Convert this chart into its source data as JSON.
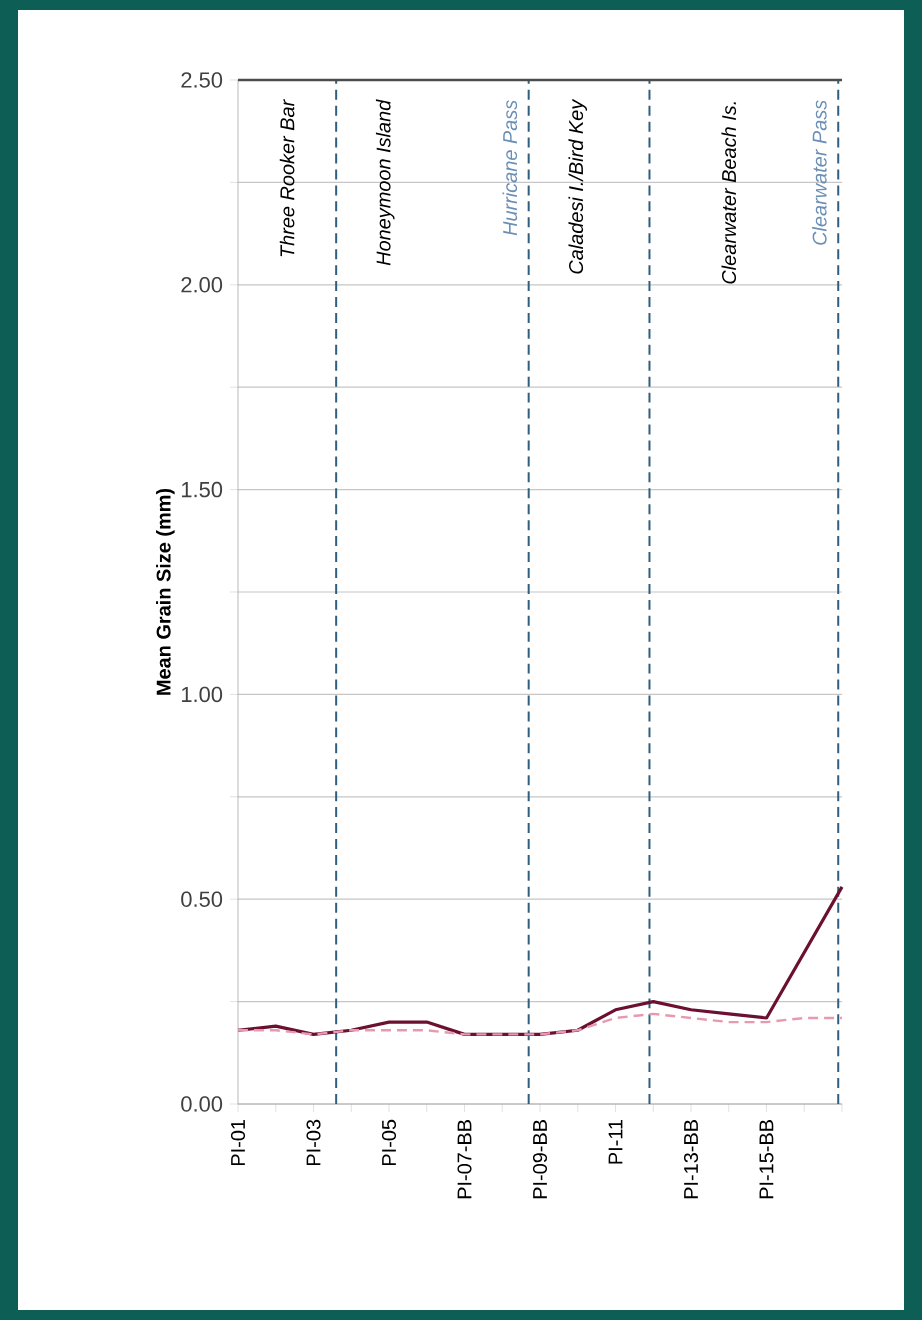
{
  "chart_data": {
    "type": "line",
    "ylabel": "Mean Grain Size (mm)",
    "categories": [
      "PI-01",
      null,
      "PI-03",
      null,
      "PI-05",
      null,
      "PI-07-BB",
      null,
      "PI-09-BB",
      null,
      "PI-11",
      null,
      "PI-13-BB",
      null,
      "PI-15-BB",
      null,
      null
    ],
    "series": [
      {
        "color": "#6b1030",
        "line_style": "solid",
        "values": [
          0.18,
          0.19,
          0.17,
          0.18,
          0.2,
          0.2,
          0.17,
          0.17,
          0.17,
          0.18,
          0.23,
          0.25,
          0.23,
          0.22,
          0.21,
          0.37,
          0.53
        ]
      },
      {
        "color": "#e79aae",
        "line_style": "dashed",
        "values": [
          0.18,
          0.18,
          0.17,
          0.18,
          0.18,
          0.18,
          0.17,
          0.17,
          0.17,
          0.18,
          0.21,
          0.22,
          0.21,
          0.2,
          0.2,
          0.21,
          0.21
        ]
      }
    ],
    "ylim": [
      0,
      2.5
    ],
    "yticks": [
      {
        "value": 0,
        "label": "0.00"
      },
      {
        "value": 0.25,
        "label": null
      },
      {
        "value": 0.5,
        "label": "0.50"
      },
      {
        "value": 0.75,
        "label": null
      },
      {
        "value": 1,
        "label": "1.00"
      },
      {
        "value": 1.25,
        "label": null
      },
      {
        "value": 1.5,
        "label": "1.50"
      },
      {
        "value": 1.75,
        "label": null
      },
      {
        "value": 2,
        "label": "2.00"
      },
      {
        "value": 2.25,
        "label": null
      },
      {
        "value": 2.5,
        "label": "2.50"
      }
    ],
    "grid": "y",
    "marker": "none",
    "annotations": [
      "Three Rooker Bar",
      "Honeymoon Island",
      "Hurricane Pass",
      "Caladesi I./Bird Key",
      "Clearwater Beach Is.",
      "Clearwater Pass"
    ]
  }
}
